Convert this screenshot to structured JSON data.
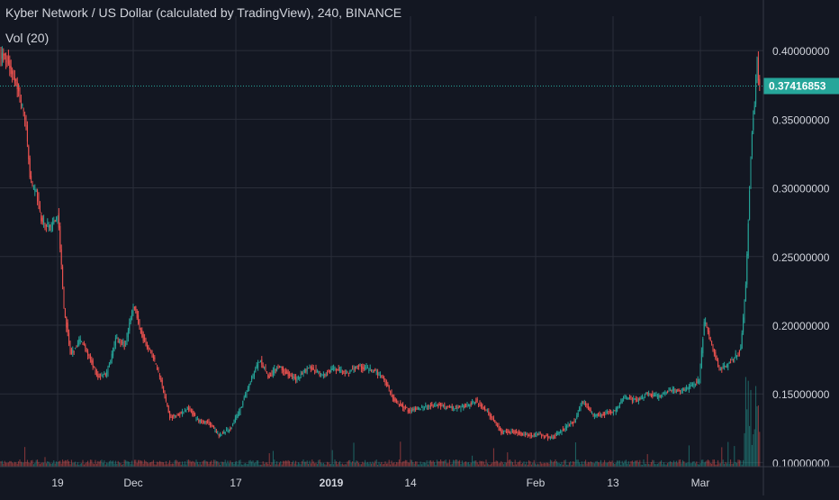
{
  "chart_data": {
    "type": "candlestick",
    "title": "Kyber Network / US Dollar (calculated by TradingView), 240, BINANCE",
    "subtitle": "Vol (20)",
    "x_ticks": [
      "19",
      "Dec",
      "17",
      "2019",
      "14",
      "Feb",
      "13",
      "Mar"
    ],
    "y_ticks": [
      "0.40000000",
      "0.35000000",
      "0.30000000",
      "0.25000000",
      "0.20000000",
      "0.15000000",
      "0.10000000"
    ],
    "y_tick_values": [
      0.4,
      0.35,
      0.3,
      0.25,
      0.2,
      0.15,
      0.1
    ],
    "ylim": [
      0.097,
      0.425
    ],
    "last_price": 0.37416853,
    "last_price_label": "0.37416853",
    "grid": true,
    "price_series": [
      {
        "x": 0,
        "y": 0.398
      },
      {
        "x": 10,
        "y": 0.392
      },
      {
        "x": 20,
        "y": 0.375
      },
      {
        "x": 30,
        "y": 0.348
      },
      {
        "x": 35,
        "y": 0.305
      },
      {
        "x": 42,
        "y": 0.295
      },
      {
        "x": 48,
        "y": 0.275
      },
      {
        "x": 58,
        "y": 0.27
      },
      {
        "x": 66,
        "y": 0.282
      },
      {
        "x": 72,
        "y": 0.215
      },
      {
        "x": 80,
        "y": 0.178
      },
      {
        "x": 90,
        "y": 0.19
      },
      {
        "x": 100,
        "y": 0.178
      },
      {
        "x": 110,
        "y": 0.162
      },
      {
        "x": 120,
        "y": 0.165
      },
      {
        "x": 130,
        "y": 0.19
      },
      {
        "x": 140,
        "y": 0.185
      },
      {
        "x": 150,
        "y": 0.215
      },
      {
        "x": 160,
        "y": 0.19
      },
      {
        "x": 170,
        "y": 0.18
      },
      {
        "x": 180,
        "y": 0.16
      },
      {
        "x": 190,
        "y": 0.133
      },
      {
        "x": 200,
        "y": 0.135
      },
      {
        "x": 210,
        "y": 0.14
      },
      {
        "x": 222,
        "y": 0.13
      },
      {
        "x": 232,
        "y": 0.13
      },
      {
        "x": 245,
        "y": 0.12
      },
      {
        "x": 258,
        "y": 0.125
      },
      {
        "x": 270,
        "y": 0.142
      },
      {
        "x": 280,
        "y": 0.16
      },
      {
        "x": 290,
        "y": 0.175
      },
      {
        "x": 300,
        "y": 0.162
      },
      {
        "x": 310,
        "y": 0.17
      },
      {
        "x": 320,
        "y": 0.165
      },
      {
        "x": 330,
        "y": 0.16
      },
      {
        "x": 345,
        "y": 0.17
      },
      {
        "x": 360,
        "y": 0.163
      },
      {
        "x": 372,
        "y": 0.168
      },
      {
        "x": 385,
        "y": 0.165
      },
      {
        "x": 400,
        "y": 0.17
      },
      {
        "x": 415,
        "y": 0.168
      },
      {
        "x": 428,
        "y": 0.16
      },
      {
        "x": 440,
        "y": 0.145
      },
      {
        "x": 455,
        "y": 0.138
      },
      {
        "x": 470,
        "y": 0.14
      },
      {
        "x": 485,
        "y": 0.142
      },
      {
        "x": 500,
        "y": 0.14
      },
      {
        "x": 515,
        "y": 0.14
      },
      {
        "x": 530,
        "y": 0.145
      },
      {
        "x": 545,
        "y": 0.135
      },
      {
        "x": 558,
        "y": 0.122
      },
      {
        "x": 572,
        "y": 0.122
      },
      {
        "x": 585,
        "y": 0.12
      },
      {
        "x": 600,
        "y": 0.12
      },
      {
        "x": 615,
        "y": 0.118
      },
      {
        "x": 628,
        "y": 0.125
      },
      {
        "x": 640,
        "y": 0.13
      },
      {
        "x": 648,
        "y": 0.145
      },
      {
        "x": 660,
        "y": 0.135
      },
      {
        "x": 672,
        "y": 0.135
      },
      {
        "x": 685,
        "y": 0.138
      },
      {
        "x": 695,
        "y": 0.148
      },
      {
        "x": 708,
        "y": 0.145
      },
      {
        "x": 720,
        "y": 0.15
      },
      {
        "x": 732,
        "y": 0.148
      },
      {
        "x": 745,
        "y": 0.153
      },
      {
        "x": 755,
        "y": 0.152
      },
      {
        "x": 768,
        "y": 0.155
      },
      {
        "x": 778,
        "y": 0.16
      },
      {
        "x": 784,
        "y": 0.205
      },
      {
        "x": 792,
        "y": 0.185
      },
      {
        "x": 800,
        "y": 0.168
      },
      {
        "x": 808,
        "y": 0.17
      },
      {
        "x": 816,
        "y": 0.176
      },
      {
        "x": 824,
        "y": 0.182
      },
      {
        "x": 830,
        "y": 0.23
      },
      {
        "x": 834,
        "y": 0.3
      },
      {
        "x": 837,
        "y": 0.345
      },
      {
        "x": 840,
        "y": 0.36
      },
      {
        "x": 842,
        "y": 0.4
      },
      {
        "x": 844,
        "y": 0.374
      }
    ]
  }
}
